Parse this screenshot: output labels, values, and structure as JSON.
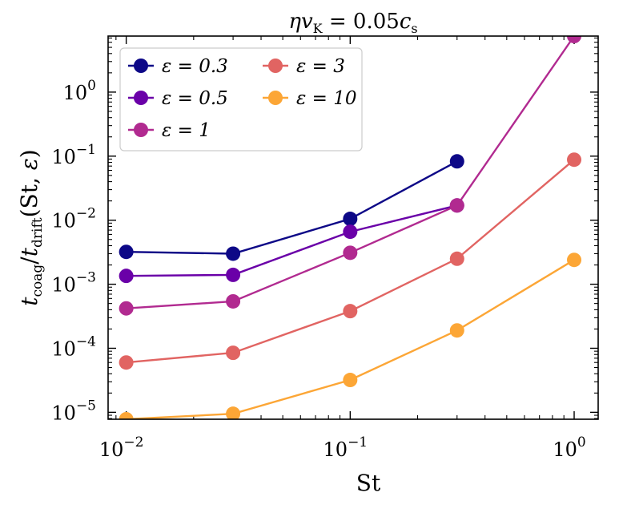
{
  "chart_data": {
    "type": "line",
    "title": "ηv_K = 0.05c_s",
    "xlabel": "St",
    "ylabel": "t_coag / t_drift(St, ε)",
    "xscale": "log",
    "yscale": "log",
    "xlim": [
      0.0083,
      1.28
    ],
    "ylim": [
      7.8e-06,
      7.5
    ],
    "xticks": [
      {
        "value": 0.01,
        "base": "10",
        "exp": "−2"
      },
      {
        "value": 0.1,
        "base": "10",
        "exp": "−1"
      },
      {
        "value": 1,
        "base": "10",
        "exp": "0"
      }
    ],
    "yticks": [
      {
        "value": 1e-05,
        "base": "10",
        "exp": "−5"
      },
      {
        "value": 0.0001,
        "base": "10",
        "exp": "−4"
      },
      {
        "value": 0.001,
        "base": "10",
        "exp": "−3"
      },
      {
        "value": 0.01,
        "base": "10",
        "exp": "−2"
      },
      {
        "value": 0.1,
        "base": "10",
        "exp": "−1"
      },
      {
        "value": 1,
        "base": "10",
        "exp": "0"
      }
    ],
    "legend_position": "top-left",
    "series": [
      {
        "name": "ε = 0.3",
        "color": "#0d0887",
        "x": [
          0.01,
          0.03,
          0.1,
          0.3
        ],
        "y": [
          0.0032,
          0.003,
          0.0105,
          0.083
        ]
      },
      {
        "name": "ε = 0.5",
        "color": "#6a00a8",
        "x": [
          0.01,
          0.03,
          0.1,
          0.3
        ],
        "y": [
          0.00135,
          0.0014,
          0.0066,
          0.017
        ]
      },
      {
        "name": "ε = 1",
        "color": "#b12a90",
        "x": [
          0.01,
          0.03,
          0.1,
          0.3,
          1
        ],
        "y": [
          0.00042,
          0.00054,
          0.0031,
          0.017,
          7.5
        ]
      },
      {
        "name": "ε = 3",
        "color": "#e16462",
        "x": [
          0.01,
          0.03,
          0.1,
          0.3,
          1
        ],
        "y": [
          6e-05,
          8.5e-05,
          0.00038,
          0.0025,
          0.088
        ]
      },
      {
        "name": "ε = 10",
        "color": "#fca636",
        "x": [
          0.01,
          0.03,
          0.1,
          0.3,
          1
        ],
        "y": [
          7.8e-06,
          9.5e-06,
          3.2e-05,
          0.00019,
          0.0024
        ]
      }
    ]
  }
}
